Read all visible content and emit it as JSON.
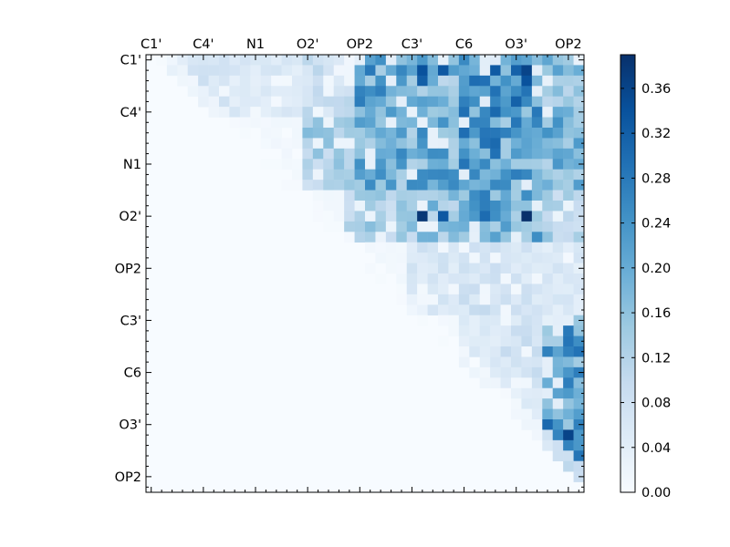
{
  "chart_data": {
    "type": "heatmap",
    "title": "",
    "xlabel": "",
    "ylabel": "",
    "x_tick_labels": [
      "C1'",
      "C4'",
      "N1",
      "O2'",
      "OP2",
      "C3'",
      "C6",
      "O3'",
      "OP2"
    ],
    "y_tick_labels": [
      "C1'",
      "C4'",
      "N1",
      "O2'",
      "OP2",
      "C3'",
      "C6",
      "O3'",
      "OP2"
    ],
    "n_rows": 42,
    "n_cols": 42,
    "tick_step": 5,
    "colormap": "Blues",
    "colorbar": {
      "vmin": 0.0,
      "vmax": 0.39,
      "ticks": [
        "0.00",
        "0.04",
        "0.08",
        "0.12",
        "0.16",
        "0.20",
        "0.24",
        "0.28",
        "0.32",
        "0.36"
      ],
      "colors": [
        "#f7fbff",
        "#deebf7",
        "#c6dbef",
        "#9ecae1",
        "#6baed6",
        "#4292c6",
        "#2171b5",
        "#08519c",
        "#08306b"
      ]
    },
    "matrix_note": "upper triangular; values for j > i estimated from image",
    "block_rows": [
      {
        "rows": [
          0,
          5
        ],
        "cols": [
          2,
          7
        ],
        "value": 0.06
      },
      {
        "rows": [
          0,
          5
        ],
        "cols": [
          8,
          14
        ],
        "value": 0.05
      },
      {
        "rows": [
          0,
          5
        ],
        "cols": [
          15,
          19
        ],
        "value": 0.08
      },
      {
        "rows": [
          0,
          5
        ],
        "cols": [
          20,
          24
        ],
        "value": 0.2
      },
      {
        "rows": [
          0,
          5
        ],
        "cols": [
          25,
          29
        ],
        "value": 0.16
      },
      {
        "rows": [
          0,
          5
        ],
        "cols": [
          30,
          33
        ],
        "value": 0.24
      },
      {
        "rows": [
          0,
          5
        ],
        "cols": [
          34,
          37
        ],
        "value": 0.22
      },
      {
        "rows": [
          0,
          5
        ],
        "cols": [
          38,
          41
        ],
        "value": 0.16
      },
      {
        "rows": [
          6,
          12
        ],
        "cols": [
          15,
          19
        ],
        "value": 0.12
      },
      {
        "rows": [
          6,
          12
        ],
        "cols": [
          20,
          24
        ],
        "value": 0.18
      },
      {
        "rows": [
          6,
          12
        ],
        "cols": [
          25,
          29
        ],
        "value": 0.18
      },
      {
        "rows": [
          6,
          12
        ],
        "cols": [
          30,
          33
        ],
        "value": 0.22
      },
      {
        "rows": [
          6,
          12
        ],
        "cols": [
          34,
          37
        ],
        "value": 0.2
      },
      {
        "rows": [
          6,
          12
        ],
        "cols": [
          38,
          41
        ],
        "value": 0.17
      },
      {
        "rows": [
          13,
          17
        ],
        "cols": [
          19,
          24
        ],
        "value": 0.12
      },
      {
        "rows": [
          13,
          17
        ],
        "cols": [
          25,
          29
        ],
        "value": 0.14
      },
      {
        "rows": [
          13,
          17
        ],
        "cols": [
          30,
          33
        ],
        "value": 0.2
      },
      {
        "rows": [
          13,
          17
        ],
        "cols": [
          34,
          37
        ],
        "value": 0.18
      },
      {
        "rows": [
          13,
          17
        ],
        "cols": [
          38,
          41
        ],
        "value": 0.12
      },
      {
        "rows": [
          18,
          24
        ],
        "cols": [
          25,
          29
        ],
        "value": 0.06
      },
      {
        "rows": [
          18,
          24
        ],
        "cols": [
          30,
          33
        ],
        "value": 0.07
      },
      {
        "rows": [
          18,
          24
        ],
        "cols": [
          34,
          37
        ],
        "value": 0.06
      },
      {
        "rows": [
          18,
          24
        ],
        "cols": [
          38,
          41
        ],
        "value": 0.05
      },
      {
        "rows": [
          25,
          31
        ],
        "cols": [
          30,
          33
        ],
        "value": 0.05
      },
      {
        "rows": [
          25,
          31
        ],
        "cols": [
          34,
          37
        ],
        "value": 0.07
      },
      {
        "rows": [
          25,
          31
        ],
        "cols": [
          38,
          41
        ],
        "value": 0.2
      },
      {
        "rows": [
          32,
          41
        ],
        "cols": [
          35,
          37
        ],
        "value": 0.04
      },
      {
        "rows": [
          32,
          41
        ],
        "cols": [
          38,
          41
        ],
        "value": 0.22
      }
    ],
    "peaks": [
      {
        "row": 1,
        "col": 26,
        "value": 0.34
      },
      {
        "row": 2,
        "col": 26,
        "value": 0.32
      },
      {
        "row": 1,
        "col": 28,
        "value": 0.33
      },
      {
        "row": 1,
        "col": 36,
        "value": 0.36
      },
      {
        "row": 2,
        "col": 36,
        "value": 0.34
      },
      {
        "row": 15,
        "col": 26,
        "value": 0.38
      },
      {
        "row": 15,
        "col": 28,
        "value": 0.33
      },
      {
        "row": 15,
        "col": 36,
        "value": 0.39
      },
      {
        "row": 15,
        "col": 32,
        "value": 0.3
      },
      {
        "row": 26,
        "col": 40,
        "value": 0.28
      },
      {
        "row": 28,
        "col": 40,
        "value": 0.27
      },
      {
        "row": 36,
        "col": 40,
        "value": 0.36
      }
    ]
  }
}
